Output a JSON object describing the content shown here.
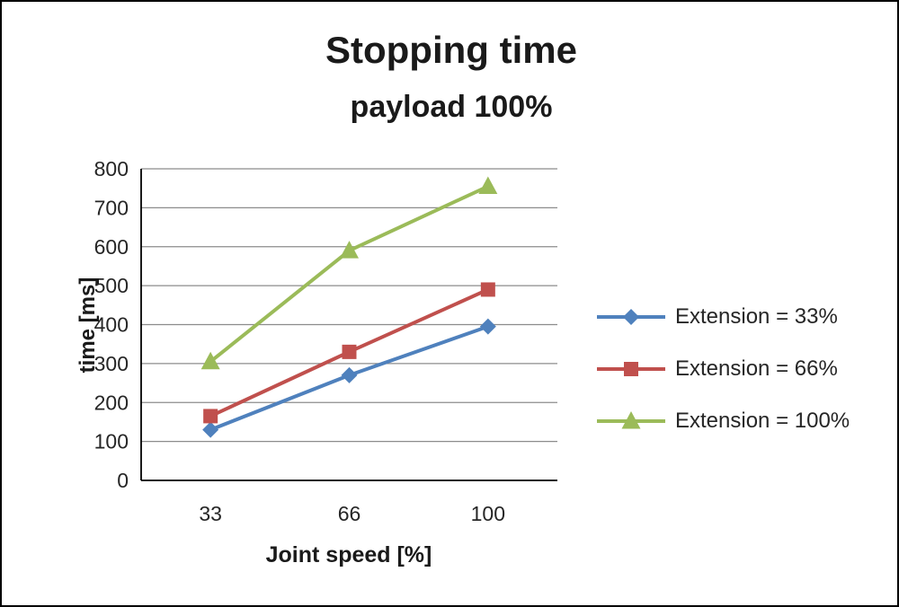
{
  "chart_data": {
    "type": "line",
    "title": "Stopping time",
    "subtitle": "payload 100%",
    "xlabel": "Joint speed [%]",
    "ylabel": "time [ms]",
    "categories": [
      "33",
      "66",
      "100"
    ],
    "ylim": [
      0,
      800
    ],
    "ytick_step": 100,
    "grid": true,
    "legend_position": "right",
    "series": [
      {
        "name": "Extension = 33%",
        "marker": "diamond",
        "color": "#4F81BD",
        "values": [
          130,
          270,
          395
        ]
      },
      {
        "name": "Extension = 66%",
        "marker": "square",
        "color": "#C0504D",
        "values": [
          165,
          330,
          490
        ]
      },
      {
        "name": "Extension = 100%",
        "marker": "triangle",
        "color": "#9BBB59",
        "values": [
          305,
          590,
          755
        ]
      }
    ]
  }
}
